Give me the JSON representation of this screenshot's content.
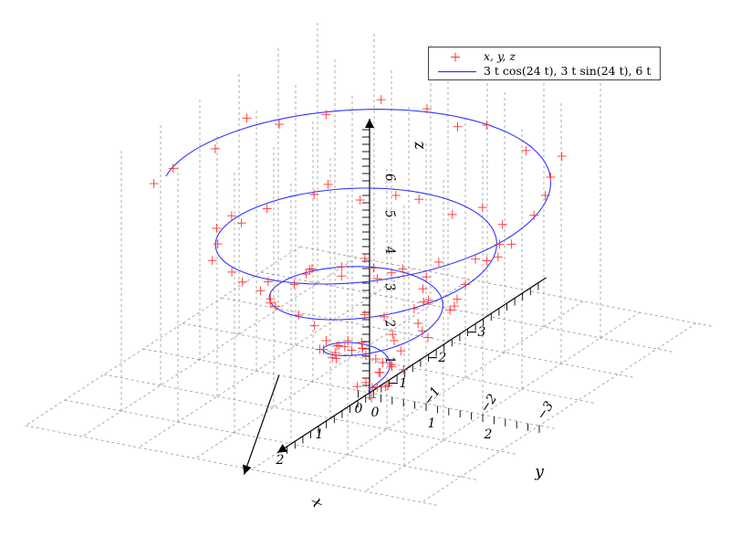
{
  "chart_data": {
    "type": "line3d+scatter3d",
    "axes": {
      "x": {
        "label": "x",
        "ticks": [
          -3,
          -2,
          -1,
          0,
          1,
          2
        ]
      },
      "y": {
        "label": "y",
        "ticks": [
          0,
          1,
          2
        ]
      },
      "y_neg": {
        "ticks": [
          -1,
          -2,
          -3
        ]
      },
      "z": {
        "label": "z",
        "ticks": [
          1,
          2,
          3,
          4,
          5,
          6
        ]
      }
    },
    "tick_labels": {
      "x": [
        "−3",
        "−2",
        "−1",
        "0",
        "1",
        "2"
      ],
      "y": [
        "0",
        "1",
        "2"
      ],
      "y_neg": [
        "−1",
        "−2",
        "−3"
      ],
      "z": [
        "1",
        "2",
        "3",
        "4",
        "5",
        "6"
      ]
    },
    "grid": true,
    "legend_position": "top-right",
    "series": [
      {
        "name": "x, y, z",
        "kind": "scatter",
        "marker": "+",
        "color": "#ff3333",
        "description_of_data": "noisy samples of the helix (3t cos 24t, 3t sin 24t, 6t), t in [0,1]"
      },
      {
        "name": "3 t cos(24 t), 3 t sin(24 t), 6 t",
        "kind": "line",
        "color": "#3333ff",
        "parametric": {
          "x": "3*t*cos(24*t)",
          "y": "3*t*sin(24*t)",
          "z": "6*t",
          "t_range": [
            0,
            1
          ]
        }
      }
    ]
  },
  "legend": {
    "scatter_label": "x, y, z",
    "line_label": "3 t cos(24 t), 3 t sin(24 t), 6 t"
  }
}
